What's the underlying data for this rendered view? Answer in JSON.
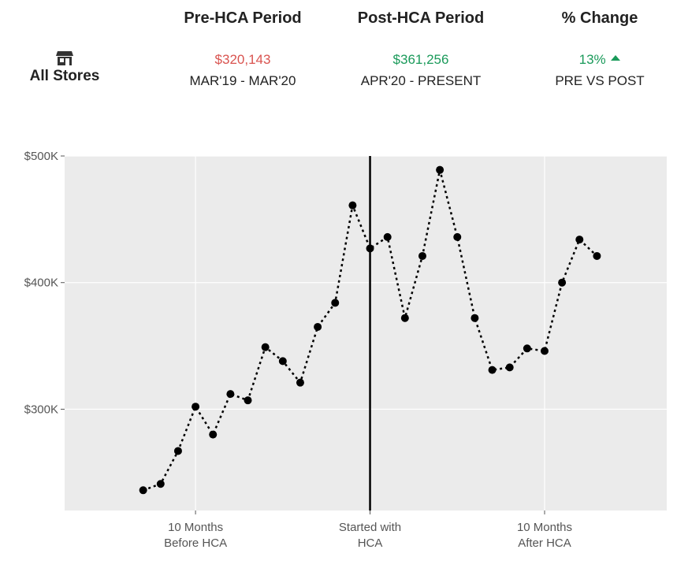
{
  "header": {
    "store_icon": "store-icon",
    "store_label": "All Stores",
    "pre": {
      "title": "Pre-HCA Period",
      "value": "$320,143",
      "range": "MAR'19 - MAR'20",
      "value_color": "#d9534f"
    },
    "post": {
      "title": "Post-HCA Period",
      "value": "$361,256",
      "range": "APR'20 - PRESENT",
      "value_color": "#1a9a5a"
    },
    "change": {
      "title": "% Change",
      "value": "13%",
      "direction_icon": "triangle-up-icon",
      "label": "PRE VS POST",
      "value_color": "#1a9a5a"
    }
  },
  "chart_data": {
    "type": "line",
    "series": [
      {
        "line_style": "dotted",
        "color": "#000000",
        "x": [
          -13,
          -12,
          -11,
          -10,
          -9,
          -8,
          -7,
          -6,
          -5,
          -4,
          -3,
          -2,
          -1,
          0,
          1,
          2,
          3,
          4,
          5,
          6,
          7,
          8,
          9,
          10,
          11,
          12,
          13
        ],
        "values": [
          236000,
          241000,
          267000,
          302000,
          280000,
          312000,
          307000,
          349000,
          338000,
          321000,
          365000,
          384000,
          461000,
          427000,
          436000,
          372000,
          421000,
          489000,
          436000,
          372000,
          331000,
          333000,
          348000,
          346000,
          400000,
          434000,
          421000
        ]
      }
    ],
    "xlim": [
      -17.5,
      17
    ],
    "ylim": [
      220000,
      500000
    ],
    "y_ticks": [
      {
        "value": 300000,
        "label": "$300K"
      },
      {
        "value": 400000,
        "label": "$400K"
      },
      {
        "value": 500000,
        "label": "$500K"
      }
    ],
    "x_ticks": [
      {
        "value": -10,
        "label": [
          "10 Months",
          "Before HCA"
        ]
      },
      {
        "value": 0,
        "label": [
          "Started with",
          "HCA"
        ]
      },
      {
        "value": 10,
        "label": [
          "10 Months",
          "After HCA"
        ]
      }
    ],
    "reference_line_x": 0,
    "grid": true,
    "background": "#ebebeb"
  }
}
